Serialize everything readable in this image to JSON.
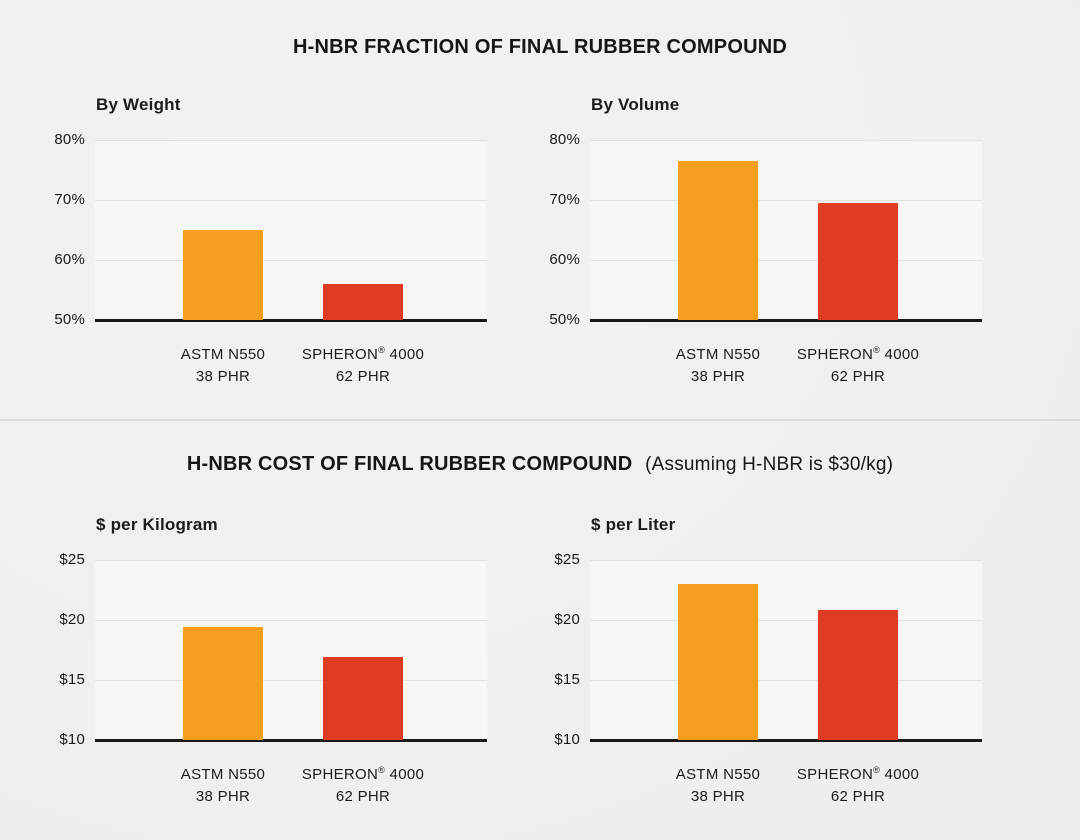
{
  "sections": [
    {
      "title": "H-NBR FRACTION OF FINAL RUBBER COMPOUND",
      "title_note": ""
    },
    {
      "title": "H-NBR COST OF FINAL RUBBER COMPOUND",
      "title_note": "(Assuming H-NBR is $30/kg)"
    }
  ],
  "colors": {
    "page_bg": "#f0efee",
    "plot_bg": "#f6f6f5",
    "gridline": "#e3e2e1",
    "baseline": "#181818",
    "divider": "#dcdbda",
    "text": "#191919",
    "orange": "#F89E1E",
    "red": "#E03C23"
  },
  "chart_data": [
    {
      "type": "bar",
      "title": "By Weight",
      "section_title": "H-NBR FRACTION OF FINAL RUBBER COMPOUND",
      "categories": [
        [
          "ASTM N550",
          "38 PHR"
        ],
        [
          "SPHERON® 4000",
          "62 PHR"
        ]
      ],
      "values": [
        65,
        56
      ],
      "value_suffix": "%",
      "ylim": [
        50,
        80
      ],
      "yticks": [
        {
          "value": 80,
          "label": "80%"
        },
        {
          "value": 70,
          "label": "70%"
        },
        {
          "value": 60,
          "label": "60%"
        },
        {
          "value": 50,
          "label": "50%"
        }
      ],
      "colors": [
        "#F89E1E",
        "#E03C23"
      ],
      "grid": true,
      "legend": "none"
    },
    {
      "type": "bar",
      "title": "By Volume",
      "section_title": "H-NBR FRACTION OF FINAL RUBBER COMPOUND",
      "categories": [
        [
          "ASTM N550",
          "38 PHR"
        ],
        [
          "SPHERON® 4000",
          "62 PHR"
        ]
      ],
      "values": [
        76.5,
        69.5
      ],
      "value_suffix": "%",
      "ylim": [
        50,
        80
      ],
      "yticks": [
        {
          "value": 80,
          "label": "80%"
        },
        {
          "value": 70,
          "label": "70%"
        },
        {
          "value": 60,
          "label": "60%"
        },
        {
          "value": 50,
          "label": "50%"
        }
      ],
      "colors": [
        "#F89E1E",
        "#E03C23"
      ],
      "grid": true,
      "legend": "none"
    },
    {
      "type": "bar",
      "title": "$ per Kilogram",
      "section_title": "H-NBR COST OF FINAL RUBBER COMPOUND (Assuming H-NBR is $30/kg)",
      "categories": [
        [
          "ASTM N550",
          "38 PHR"
        ],
        [
          "SPHERON® 4000",
          "62 PHR"
        ]
      ],
      "values": [
        19.4,
        16.9
      ],
      "value_prefix": "$",
      "ylim": [
        10,
        25
      ],
      "yticks": [
        {
          "value": 25,
          "label": "$25"
        },
        {
          "value": 20,
          "label": "$20"
        },
        {
          "value": 15,
          "label": "$15"
        },
        {
          "value": 10,
          "label": "$10"
        }
      ],
      "colors": [
        "#F89E1E",
        "#E03C23"
      ],
      "grid": true,
      "legend": "none"
    },
    {
      "type": "bar",
      "title": "$ per Liter",
      "section_title": "H-NBR COST OF FINAL RUBBER COMPOUND (Assuming H-NBR is $30/kg)",
      "categories": [
        [
          "ASTM N550",
          "38 PHR"
        ],
        [
          "SPHERON® 4000",
          "62 PHR"
        ]
      ],
      "values": [
        23.0,
        20.8
      ],
      "value_prefix": "$",
      "ylim": [
        10,
        25
      ],
      "yticks": [
        {
          "value": 25,
          "label": "$25"
        },
        {
          "value": 20,
          "label": "$20"
        },
        {
          "value": 15,
          "label": "$15"
        },
        {
          "value": 10,
          "label": "$10"
        }
      ],
      "colors": [
        "#F89E1E",
        "#E03C23"
      ],
      "grid": true,
      "legend": "none"
    }
  ]
}
